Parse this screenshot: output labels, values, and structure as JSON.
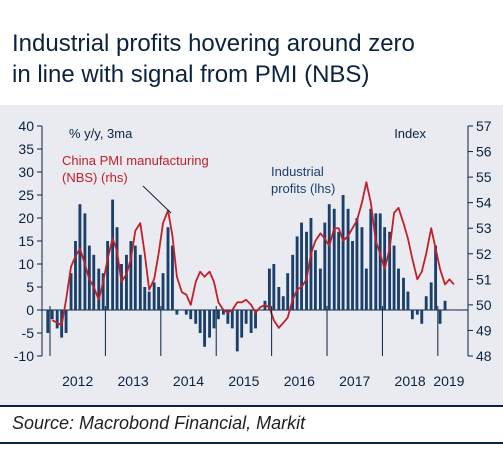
{
  "title": {
    "line1": "Industrial profits hovering around zero",
    "line2": "in line with signal from PMI (NBS)"
  },
  "source": "Source: Macrobond Financial, Markit",
  "colors": {
    "bars": "#1b3f6b",
    "line": "#c0202a",
    "text": "#0c2340",
    "background": "#e9ebf1"
  },
  "chart_data": {
    "type": "bar",
    "left_axis": {
      "label": "% y/y, 3ma",
      "range": [
        -10,
        40
      ],
      "ticks": [
        "-10",
        "-5",
        "0",
        "5",
        "10",
        "15",
        "20",
        "25",
        "30",
        "35",
        "40"
      ]
    },
    "right_axis": {
      "label": "Index",
      "range": [
        48,
        57
      ],
      "ticks": [
        "48",
        "49",
        "50",
        "51",
        "52",
        "53",
        "54",
        "55",
        "56",
        "57"
      ]
    },
    "x_axis": {
      "range": [
        2012,
        2019.4
      ],
      "labels": [
        "2012",
        "2013",
        "2014",
        "2015",
        "2016",
        "2017",
        "2018",
        "2019"
      ]
    },
    "legend": [
      {
        "text": [
          "Industrial",
          "profits (lhs)"
        ],
        "color": "#1b3f6b"
      },
      {
        "text": [
          "China PMI manufacturing",
          "(NBS) (rhs)"
        ],
        "color": "#c0202a"
      }
    ],
    "series": [
      {
        "name": "Industrial profits (lhs)",
        "type": "bar",
        "x": [
          2011.96,
          2012.04,
          2012.13,
          2012.21,
          2012.29,
          2012.38,
          2012.46,
          2012.54,
          2012.63,
          2012.71,
          2012.79,
          2012.88,
          2012.96,
          2013.04,
          2013.13,
          2013.21,
          2013.29,
          2013.38,
          2013.46,
          2013.54,
          2013.63,
          2013.71,
          2013.79,
          2013.88,
          2013.96,
          2014.04,
          2014.13,
          2014.21,
          2014.29,
          2014.38,
          2014.46,
          2014.54,
          2014.63,
          2014.71,
          2014.79,
          2014.88,
          2014.96,
          2015.04,
          2015.13,
          2015.21,
          2015.29,
          2015.38,
          2015.46,
          2015.54,
          2015.63,
          2015.71,
          2015.79,
          2015.88,
          2015.96,
          2016.04,
          2016.13,
          2016.21,
          2016.29,
          2016.38,
          2016.46,
          2016.54,
          2016.63,
          2016.71,
          2016.79,
          2016.88,
          2016.96,
          2017.04,
          2017.13,
          2017.21,
          2017.29,
          2017.38,
          2017.46,
          2017.54,
          2017.63,
          2017.71,
          2017.79,
          2017.88,
          2017.96,
          2018.04,
          2018.13,
          2018.21,
          2018.29,
          2018.38,
          2018.46,
          2018.54,
          2018.63,
          2018.71,
          2018.79,
          2018.88,
          2018.96,
          2019.04,
          2019.13,
          2019.21,
          2019.29
        ],
        "values": [
          -5,
          -2,
          -4,
          -6,
          -5,
          8,
          15,
          23,
          21,
          14,
          12,
          9,
          8,
          15,
          24,
          18,
          10,
          12,
          15,
          14,
          12,
          5,
          4,
          6,
          5,
          8,
          18,
          14,
          -1,
          0,
          -1,
          -2,
          -3,
          -5,
          -8,
          -6,
          -4,
          -2,
          -1,
          -3,
          -4,
          -9,
          -6,
          -3,
          -5,
          -4,
          0,
          2,
          9,
          10,
          5,
          3,
          8,
          12,
          16,
          19,
          17,
          20,
          13,
          9,
          19,
          23,
          22,
          17,
          25,
          22,
          15,
          20,
          18,
          9,
          22,
          21,
          21,
          18,
          17,
          14,
          9,
          7,
          4,
          -2,
          -1,
          -3,
          3,
          6,
          14,
          -3,
          2,
          0,
          0
        ]
      },
      {
        "name": "China PMI manufacturing (NBS) (rhs)",
        "type": "line",
        "x": [
          2012.04,
          2012.13,
          2012.21,
          2012.29,
          2012.38,
          2012.46,
          2012.54,
          2012.63,
          2012.71,
          2012.79,
          2012.88,
          2012.96,
          2013.04,
          2013.13,
          2013.21,
          2013.29,
          2013.38,
          2013.46,
          2013.54,
          2013.63,
          2013.71,
          2013.79,
          2013.88,
          2013.96,
          2014.04,
          2014.13,
          2014.21,
          2014.29,
          2014.38,
          2014.46,
          2014.54,
          2014.63,
          2014.71,
          2014.79,
          2014.88,
          2014.96,
          2015.04,
          2015.13,
          2015.21,
          2015.29,
          2015.38,
          2015.46,
          2015.54,
          2015.63,
          2015.71,
          2015.79,
          2015.88,
          2015.96,
          2016.04,
          2016.13,
          2016.21,
          2016.29,
          2016.38,
          2016.46,
          2016.54,
          2016.63,
          2016.71,
          2016.79,
          2016.88,
          2016.96,
          2017.04,
          2017.13,
          2017.21,
          2017.29,
          2017.38,
          2017.46,
          2017.54,
          2017.63,
          2017.71,
          2017.79,
          2017.88,
          2017.96,
          2018.04,
          2018.13,
          2018.21,
          2018.29,
          2018.38,
          2018.46,
          2018.54,
          2018.63,
          2018.71,
          2018.79,
          2018.88,
          2018.96,
          2019.04,
          2019.13,
          2019.21,
          2019.29
        ],
        "values": [
          49.4,
          49.3,
          49.2,
          50.2,
          51.5,
          51.9,
          52.2,
          51.6,
          51.0,
          50.7,
          50.2,
          50.9,
          51.8,
          52.6,
          52.1,
          50.9,
          51.2,
          51.8,
          52.9,
          53.2,
          52.0,
          50.6,
          51.0,
          52.0,
          53.2,
          53.7,
          52.7,
          51.1,
          50.5,
          50.4,
          50.0,
          50.9,
          51.3,
          51.1,
          51.3,
          50.9,
          50.1,
          49.8,
          49.7,
          49.8,
          50.1,
          50.1,
          50.2,
          50.0,
          49.7,
          49.9,
          50.0,
          49.9,
          49.4,
          49.1,
          49.3,
          49.5,
          50.2,
          50.6,
          50.7,
          51.0,
          52.0,
          52.5,
          52.8,
          52.6,
          52.3,
          53.0,
          53.0,
          52.5,
          52.7,
          53.0,
          53.3,
          54.0,
          54.8,
          54.0,
          52.5,
          52.0,
          51.4,
          52.2,
          53.6,
          53.8,
          53.2,
          52.6,
          51.8,
          51.0,
          51.3,
          52.0,
          53.0,
          52.2,
          51.4,
          50.8,
          51.0,
          50.8
        ]
      }
    ],
    "grid": false
  }
}
